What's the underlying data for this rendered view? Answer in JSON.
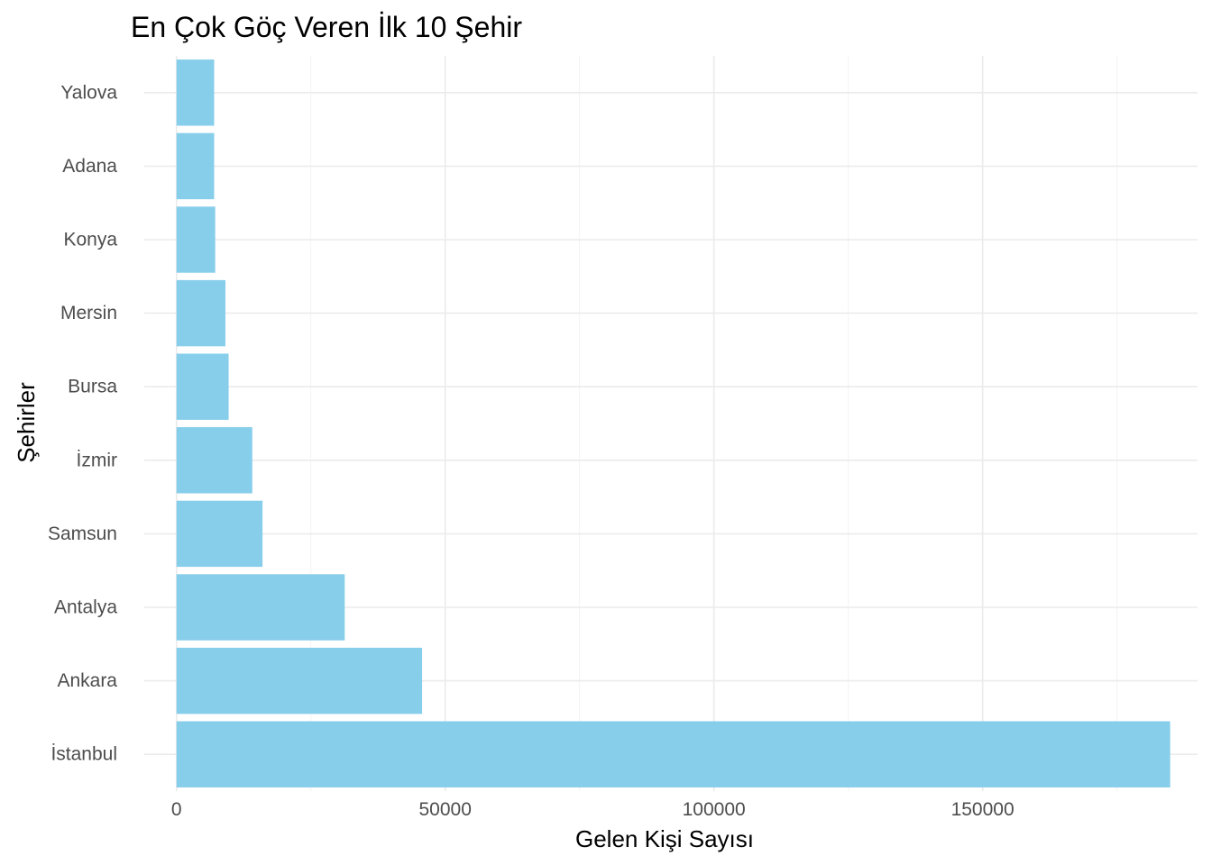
{
  "chart_data": {
    "type": "bar",
    "orientation": "horizontal",
    "title": "En Çok Göç Veren İlk 10 Şehir",
    "xlabel": "Gelen Kişi Sayısı",
    "ylabel": "Şehirler",
    "categories": [
      "İstanbul",
      "Ankara",
      "Antalya",
      "Samsun",
      "İzmir",
      "Bursa",
      "Mersin",
      "Konya",
      "Adana",
      "Yalova"
    ],
    "values": [
      184900,
      45700,
      31300,
      16000,
      14100,
      9700,
      9100,
      7200,
      7000,
      7000
    ],
    "xlim": [
      -6000,
      190000
    ],
    "xticks": [
      0,
      50000,
      100000,
      150000
    ],
    "xtick_labels": [
      "0",
      "50000",
      "100000",
      "150000"
    ],
    "bar_color": "#87CEEB",
    "grid": true,
    "legend": "none"
  }
}
